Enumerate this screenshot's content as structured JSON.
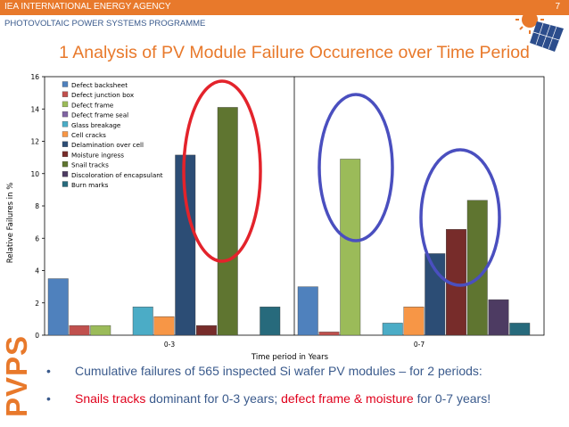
{
  "header": {
    "organization": "IEA INTERNATIONAL ENERGY AGENCY",
    "page_number": "7",
    "programme": "PHOTOVOLTAIC POWER SYSTEMS PROGRAMME",
    "title": "1 Analysis of PV Module Failure Occurence over Time Period",
    "side_label": "PVPS"
  },
  "bullets": {
    "line1": "Cumulative failures of 565 inspected Si wafer PV modules – for 2 periods:",
    "line2_a": "Snails tracks",
    "line2_b": " dominant for 0-3 years; ",
    "line2_c": "defect frame & moisture",
    "line2_d": " for 0-7 years!"
  },
  "colors": {
    "accent": "#e8792b",
    "blue_text": "#3a5a8c",
    "highlight_red": "#e0001b",
    "circle_red": "#e3232b",
    "circle_blue": "#4a4fbf"
  },
  "chart_data": {
    "type": "bar",
    "xlabel": "Time period in Years",
    "ylabel": "Relative Failures in %",
    "ylim": [
      0,
      16
    ],
    "yticks": [
      0,
      2,
      4,
      6,
      8,
      10,
      12,
      14,
      16
    ],
    "grid": false,
    "legend_position": "upper-left",
    "categories": [
      "0-3",
      "0-7"
    ],
    "series": [
      {
        "name": "Defect backsheet",
        "color": "#4f81bd",
        "values": [
          3.5,
          3.0
        ]
      },
      {
        "name": "Defect junction box",
        "color": "#c0504d",
        "values": [
          0.6,
          0.2
        ]
      },
      {
        "name": "Defect frame",
        "color": "#9bbb59",
        "values": [
          0.6,
          10.9
        ]
      },
      {
        "name": "Defect frame seal",
        "color": "#8064a2",
        "values": [
          0,
          0
        ]
      },
      {
        "name": "Glass breakage",
        "color": "#4bacc6",
        "values": [
          1.75,
          0.75
        ]
      },
      {
        "name": "Cell cracks",
        "color": "#f79646",
        "values": [
          1.15,
          1.75
        ]
      },
      {
        "name": "Delamination over cell",
        "color": "#2c4d75",
        "values": [
          11.15,
          5.05
        ]
      },
      {
        "name": "Moisture ingress",
        "color": "#772c2a",
        "values": [
          0.6,
          6.55
        ]
      },
      {
        "name": "Snail tracks",
        "color": "#5f7530",
        "values": [
          14.1,
          8.35
        ]
      },
      {
        "name": "Discoloration of encapsulant",
        "color": "#4d3b62",
        "values": [
          0,
          2.2
        ]
      },
      {
        "name": "Burn marks",
        "color": "#276a7c",
        "values": [
          1.75,
          0.75
        ]
      }
    ]
  }
}
